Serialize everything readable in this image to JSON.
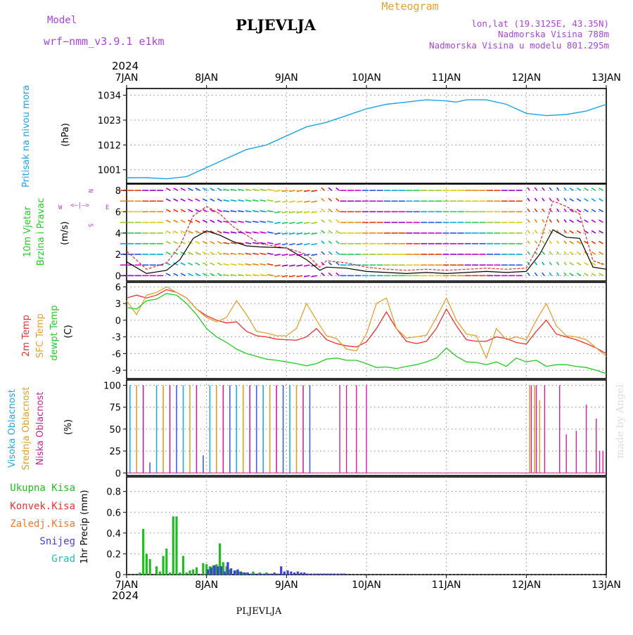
{
  "header": {
    "model_label": "Model",
    "model_name": "wrf−nmm_v3.9.1  e1km",
    "title": "PLJEVLJA",
    "meteogram": "Meteogram",
    "lonlat": "lon,lat (19.3125E, 43.35N)",
    "altitude": "Nadmorska Visina 788m",
    "model_altitude": "Nadmorska Visina u modelu 801.295m",
    "year_top": "2024",
    "year_bottom": "2024",
    "footer_station": "PLJEVLJA",
    "watermark": "made by Angel"
  },
  "colors": {
    "pressure": "#1aa3e8",
    "temp2m": "#f03030",
    "sfc_temp": "#e6a030",
    "dewpt": "#22cc22",
    "total_precip": "#22bb22",
    "convective": "#f03030",
    "freezing": "#f07830",
    "snow": "#4040e0",
    "hail": "#22bbbb",
    "high_cloud": "#22aadd",
    "mid_cloud": "#e0a020",
    "low_cloud": "#cc2299",
    "wind_speed_line": "#000000",
    "gust_line": "#e03030",
    "model_label": "#aa44dd",
    "title": "#000000",
    "meteogram": "#e6a030",
    "info": "#aa44dd"
  },
  "chart_data": [
    {
      "type": "line",
      "panel": "pressure",
      "ylabel_parts": [
        "Pritisak na nivou mora",
        "(hPa)"
      ],
      "yticks": [
        1001,
        1012,
        1023,
        1034
      ],
      "ylim": [
        995,
        1037
      ],
      "x_tick_labels": [
        "7JAN",
        "8JAN",
        "9JAN",
        "10JAN",
        "11JAN",
        "12JAN",
        "13JAN"
      ],
      "xlim": [
        0,
        144
      ],
      "series": [
        {
          "x": [
            0,
            6,
            12,
            18,
            24,
            30,
            36,
            42,
            48,
            54,
            60,
            66,
            72,
            78,
            84,
            90,
            96,
            99,
            102,
            108,
            114,
            120,
            126,
            132,
            138,
            144
          ],
          "y": [
            997.5,
            997.5,
            997,
            998,
            1002,
            1006,
            1010,
            1012,
            1016,
            1020,
            1022,
            1025,
            1028,
            1030,
            1031,
            1032,
            1031.5,
            1031,
            1032,
            1032,
            1030,
            1026,
            1025,
            1025.5,
            1027,
            1030
          ]
        }
      ]
    },
    {
      "type": "line",
      "panel": "wind",
      "ylabel_parts": [
        "10m Vjetar",
        "Brzina i Pravac",
        "(m/s)"
      ],
      "compass": [
        "N",
        "W",
        "E",
        "S"
      ],
      "yticks": [
        0,
        2,
        4,
        6,
        8
      ],
      "ylim": [
        -0.5,
        8.6
      ],
      "xlim": [
        0,
        144
      ],
      "series": [
        {
          "x": [
            0,
            6,
            12,
            16,
            20,
            24,
            28,
            32,
            36,
            40,
            48,
            54,
            58,
            60,
            66,
            72,
            78,
            84,
            90,
            96,
            102,
            108,
            114,
            120,
            124,
            128,
            132,
            136,
            140,
            144
          ],
          "y": [
            1.3,
            0.2,
            0.5,
            1.5,
            3.5,
            4.2,
            3.8,
            3.2,
            2.8,
            2.7,
            2.6,
            1.5,
            0.5,
            0.8,
            0.7,
            0.4,
            0.3,
            0.2,
            0.3,
            0.2,
            0.3,
            0.4,
            0.3,
            0.4,
            2,
            4.3,
            3.6,
            3.5,
            0.8,
            0.6
          ]
        },
        {
          "x": [
            0,
            6,
            12,
            16,
            20,
            24,
            28,
            32,
            36,
            40,
            48,
            54,
            58,
            60,
            66,
            72,
            78,
            84,
            90,
            96,
            102,
            108,
            114,
            120,
            124,
            128,
            132,
            136,
            140,
            144
          ],
          "y": [
            2.3,
            0.6,
            1.2,
            2.8,
            5.6,
            6.5,
            5.8,
            4.6,
            3.8,
            3,
            2.6,
            2,
            0.8,
            1.4,
            1.2,
            0.8,
            0.6,
            0.5,
            0.6,
            0.5,
            0.6,
            0.7,
            0.6,
            0.7,
            3,
            7,
            6.5,
            5.8,
            1.4,
            1
          ]
        }
      ]
    },
    {
      "type": "line",
      "panel": "temperature",
      "ylabel_parts": [
        "2m Temp",
        "SFC Temp",
        "dewpt Temp",
        "(C)"
      ],
      "yticks": [
        -9,
        -6,
        -3,
        0,
        3,
        6
      ],
      "ylim": [
        -10.5,
        6.8
      ],
      "xlim": [
        0,
        144
      ],
      "series": [
        {
          "x": [
            0,
            3,
            6,
            9,
            12,
            15,
            18,
            21,
            24,
            27,
            30,
            33,
            36,
            39,
            42,
            45,
            48,
            51,
            54,
            57,
            60,
            63,
            66,
            69,
            72,
            75,
            78,
            81,
            84,
            87,
            90,
            93,
            96,
            99,
            102,
            105,
            108,
            111,
            114,
            117,
            120,
            123,
            126,
            129,
            132,
            135,
            138,
            141,
            144
          ],
          "y": [
            4,
            4.5,
            4,
            4.5,
            5.5,
            5,
            4,
            2,
            0.8,
            0,
            -0.5,
            -0.3,
            -2,
            -2.8,
            -3,
            -3.4,
            -3.5,
            -3.6,
            -3,
            -1.5,
            -3.5,
            -4.2,
            -4.6,
            -4.8,
            -3.9,
            -1.5,
            1.5,
            -1.5,
            -3.8,
            -4.2,
            -3.8,
            -1.5,
            2,
            -1,
            -3.5,
            -3.8,
            -3.8,
            -3,
            -3.3,
            -4,
            -4.3,
            -2,
            0,
            -2.5,
            -3,
            -3.5,
            -4.2,
            -5,
            -6
          ]
        },
        {
          "x": [
            0,
            3,
            6,
            9,
            12,
            15,
            18,
            21,
            24,
            27,
            30,
            33,
            36,
            39,
            42,
            45,
            48,
            51,
            54,
            57,
            60,
            63,
            66,
            69,
            72,
            75,
            78,
            81,
            84,
            87,
            90,
            93,
            96,
            99,
            102,
            105,
            108,
            111,
            114,
            117,
            120,
            123,
            126,
            129,
            132,
            135,
            138,
            141,
            144
          ],
          "y": [
            3.5,
            1,
            4.5,
            5,
            6,
            5,
            4,
            2,
            0.5,
            -0.3,
            0.5,
            3.5,
            1,
            -2,
            -2.3,
            -2.8,
            -2.8,
            -1.5,
            3,
            0,
            -2.8,
            -3.3,
            -5.2,
            -5.5,
            -2.5,
            3,
            4,
            -1.5,
            -3.2,
            -3,
            -2.7,
            0.5,
            4,
            0,
            -2.5,
            -2.8,
            -6.8,
            -1.5,
            -3.5,
            -3,
            -3.5,
            0,
            3,
            -1,
            -2.8,
            -3,
            -3.5,
            -5,
            -6.5
          ]
        },
        {
          "x": [
            0,
            3,
            6,
            9,
            12,
            15,
            18,
            21,
            24,
            27,
            30,
            33,
            36,
            39,
            42,
            45,
            48,
            51,
            54,
            57,
            60,
            63,
            66,
            69,
            72,
            75,
            78,
            81,
            84,
            87,
            90,
            93,
            96,
            99,
            102,
            105,
            108,
            111,
            114,
            117,
            120,
            123,
            126,
            129,
            132,
            135,
            138,
            141,
            144
          ],
          "y": [
            2.3,
            2,
            3.5,
            3.8,
            4.8,
            4.5,
            3,
            1,
            -1.5,
            -3,
            -4,
            -5.2,
            -6,
            -6.5,
            -7,
            -7.2,
            -7.5,
            -7.8,
            -8.2,
            -7.8,
            -7,
            -6.8,
            -7.2,
            -7.2,
            -7.8,
            -8.5,
            -8.4,
            -8.7,
            -8.3,
            -8,
            -7.5,
            -6.8,
            -5,
            -6.5,
            -7.5,
            -7.6,
            -8,
            -7.5,
            -8.3,
            -6.8,
            -7.5,
            -7.2,
            -8.3,
            -8,
            -8,
            -8.3,
            -8.5,
            -9,
            -9.6
          ]
        }
      ]
    },
    {
      "type": "bar",
      "panel": "cloud",
      "ylabel_parts": [
        "Visoka Oblacnost",
        "Srednja Oblacnost",
        "Niska Oblacnost",
        "(%)"
      ],
      "yticks": [
        0,
        25,
        50,
        75,
        100
      ],
      "ylim": [
        -3,
        106
      ],
      "xlim": [
        0,
        144
      ],
      "series": [
        {
          "x_start": 1,
          "x_end": 56,
          "step": 2,
          "values": [
            100,
            100,
            100,
            12,
            100,
            100,
            100,
            100,
            100,
            100,
            100,
            20,
            100,
            100,
            100,
            100,
            100,
            100,
            100,
            100,
            100,
            100,
            100,
            100,
            100,
            100,
            100,
            100
          ]
        },
        {
          "x": [
            121,
            122.5,
            124
          ],
          "values": [
            100,
            100,
            83
          ]
        },
        {
          "x": [
            64,
            66,
            69,
            72,
            121.5,
            123,
            125.5,
            130,
            132,
            135,
            138,
            141,
            142,
            143
          ],
          "values": [
            100,
            100,
            100,
            100,
            100,
            100,
            100,
            100,
            44,
            48,
            78,
            62,
            25,
            25
          ]
        }
      ]
    },
    {
      "type": "bar",
      "panel": "precip",
      "ylabel_parts": [
        "Ukupna Kisa",
        "Konvek.Kisa",
        "Zaledj.Kisa",
        "Snijeg",
        "Grad",
        "1hr Precip (mm)"
      ],
      "yticks": [
        0,
        0.2,
        0.4,
        0.6,
        0.8
      ],
      "ylim": [
        0,
        0.94
      ],
      "x_tick_labels": [
        "7JAN",
        "8JAN",
        "9JAN",
        "10JAN",
        "11JAN",
        "12JAN",
        "13JAN"
      ],
      "xlim": [
        0,
        144
      ],
      "series": [
        {
          "x": [
            4,
            5,
            6,
            7,
            9,
            10,
            11,
            12,
            13,
            14,
            15,
            16,
            17,
            18,
            19,
            20,
            21,
            23,
            24,
            25,
            26,
            27,
            28,
            29,
            30,
            31,
            33,
            34,
            35,
            36,
            38,
            40,
            42
          ],
          "values": [
            0.02,
            0.44,
            0.2,
            0.15,
            0.08,
            0.03,
            0.18,
            0.25,
            0.02,
            0.56,
            0.56,
            0.02,
            0.18,
            0.02,
            0.04,
            0.05,
            0.07,
            0.11,
            0.1,
            0.08,
            0.09,
            0.1,
            0.3,
            0.12,
            0.08,
            0.05,
            0.04,
            0.03,
            0.02,
            0.02,
            0.03,
            0.02,
            0.02
          ]
        },
        {
          "x": [
            24,
            25,
            26,
            27,
            28,
            29,
            30,
            31,
            32,
            33,
            34,
            35,
            36,
            37,
            38,
            39,
            40,
            41,
            42,
            43,
            44,
            45,
            46,
            47,
            48,
            49,
            50,
            51,
            52,
            53,
            54,
            55,
            56,
            57,
            58,
            59,
            60,
            61,
            62,
            63,
            64,
            65
          ],
          "values": [
            0.05,
            0.07,
            0.09,
            0.08,
            0.08,
            0.03,
            0.12,
            0.06,
            0.04,
            0.05,
            0.03,
            0.02,
            0.02,
            0.01,
            0.01,
            0.01,
            0.01,
            0.01,
            0.01,
            0.01,
            0.02,
            0.01,
            0.08,
            0.03,
            0.04,
            0.03,
            0.02,
            0.03,
            0.02,
            0.02,
            0.01,
            0.01,
            0.01,
            0.01,
            0.01,
            0.01,
            0.01,
            0.01,
            0.01,
            0.01,
            0.01,
            0.01
          ]
        }
      ]
    }
  ]
}
